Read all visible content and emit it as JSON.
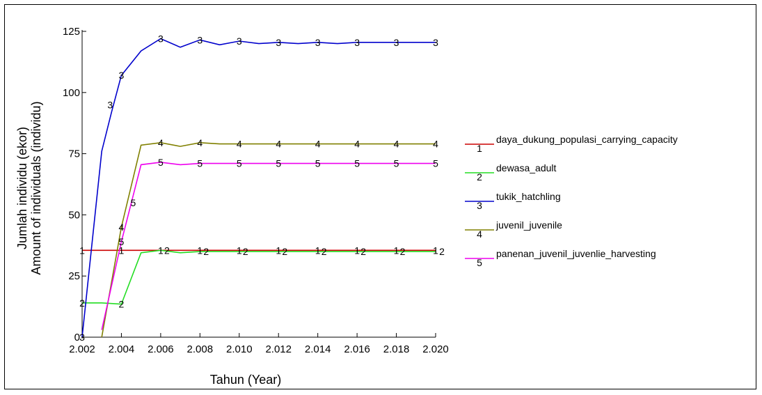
{
  "chart_data": {
    "type": "line",
    "xlabel": "Tahun (Year)",
    "ylabel_line1": "Jumlah individu (ekor)",
    "ylabel_line2": "Amount of individuals (individu)",
    "xlim": [
      2.002,
      2.02
    ],
    "ylim": [
      0,
      125
    ],
    "x_ticks": [
      "2.002",
      "2.004",
      "2.006",
      "2.008",
      "2.010",
      "2.012",
      "2.014",
      "2.016",
      "2.018",
      "2.020"
    ],
    "y_ticks": [
      "0",
      "25",
      "50",
      "75",
      "100",
      "125"
    ],
    "legend_position": "right",
    "series": [
      {
        "id": "1",
        "name": "daya_dukung_populasi_carrying_capacity",
        "color": "#cc0000",
        "x": [
          2.002,
          2.02
        ],
        "y": [
          35.5,
          35.5
        ]
      },
      {
        "id": "2",
        "name": "dewasa_adult",
        "color": "#22dd22",
        "x": [
          2.002,
          2.003,
          2.004,
          2.005,
          2.006,
          2.007,
          2.008,
          2.009,
          2.01,
          2.011,
          2.012,
          2.013,
          2.014,
          2.015,
          2.016,
          2.017,
          2.018,
          2.019,
          2.02
        ],
        "y": [
          14,
          14,
          13.5,
          34.5,
          35.5,
          34.5,
          35,
          35,
          35,
          35,
          35,
          35,
          35,
          35,
          35,
          35,
          35,
          35,
          35
        ]
      },
      {
        "id": "3",
        "name": "tukik_hatchling",
        "color": "#0000cc",
        "x": [
          2.002,
          2.003,
          2.0035,
          2.004,
          2.005,
          2.006,
          2.007,
          2.008,
          2.009,
          2.01,
          2.011,
          2.012,
          2.013,
          2.014,
          2.015,
          2.016,
          2.017,
          2.018,
          2.019,
          2.02
        ],
        "y": [
          0,
          76,
          92,
          107,
          117,
          122,
          118.5,
          121.5,
          119.5,
          121,
          120,
          120.5,
          120,
          120.5,
          120,
          120.5,
          120.5,
          120.5,
          120.5,
          120.5
        ]
      },
      {
        "id": "4",
        "name": "juvenil_juvenile",
        "color": "#808000",
        "x": [
          2.003,
          2.004,
          2.005,
          2.006,
          2.007,
          2.008,
          2.009,
          2.01,
          2.011,
          2.012,
          2.013,
          2.014,
          2.015,
          2.016,
          2.017,
          2.018,
          2.019,
          2.02
        ],
        "y": [
          0,
          45,
          78.5,
          79.5,
          78,
          79.5,
          79,
          79,
          79,
          79,
          79,
          79,
          79,
          79,
          79,
          79,
          79,
          79
        ]
      },
      {
        "id": "5",
        "name": "panenan_juvenil_juvenlie_harvesting",
        "color": "#ee00ee",
        "x": [
          2.003,
          2.004,
          2.005,
          2.006,
          2.007,
          2.008,
          2.009,
          2.01,
          2.011,
          2.012,
          2.013,
          2.014,
          2.015,
          2.016,
          2.017,
          2.018,
          2.019,
          2.02
        ],
        "y": [
          3,
          39,
          70.5,
          71.5,
          70.5,
          71,
          71,
          71,
          71,
          71,
          71,
          71,
          71,
          71,
          71,
          71,
          71,
          71
        ]
      }
    ]
  }
}
